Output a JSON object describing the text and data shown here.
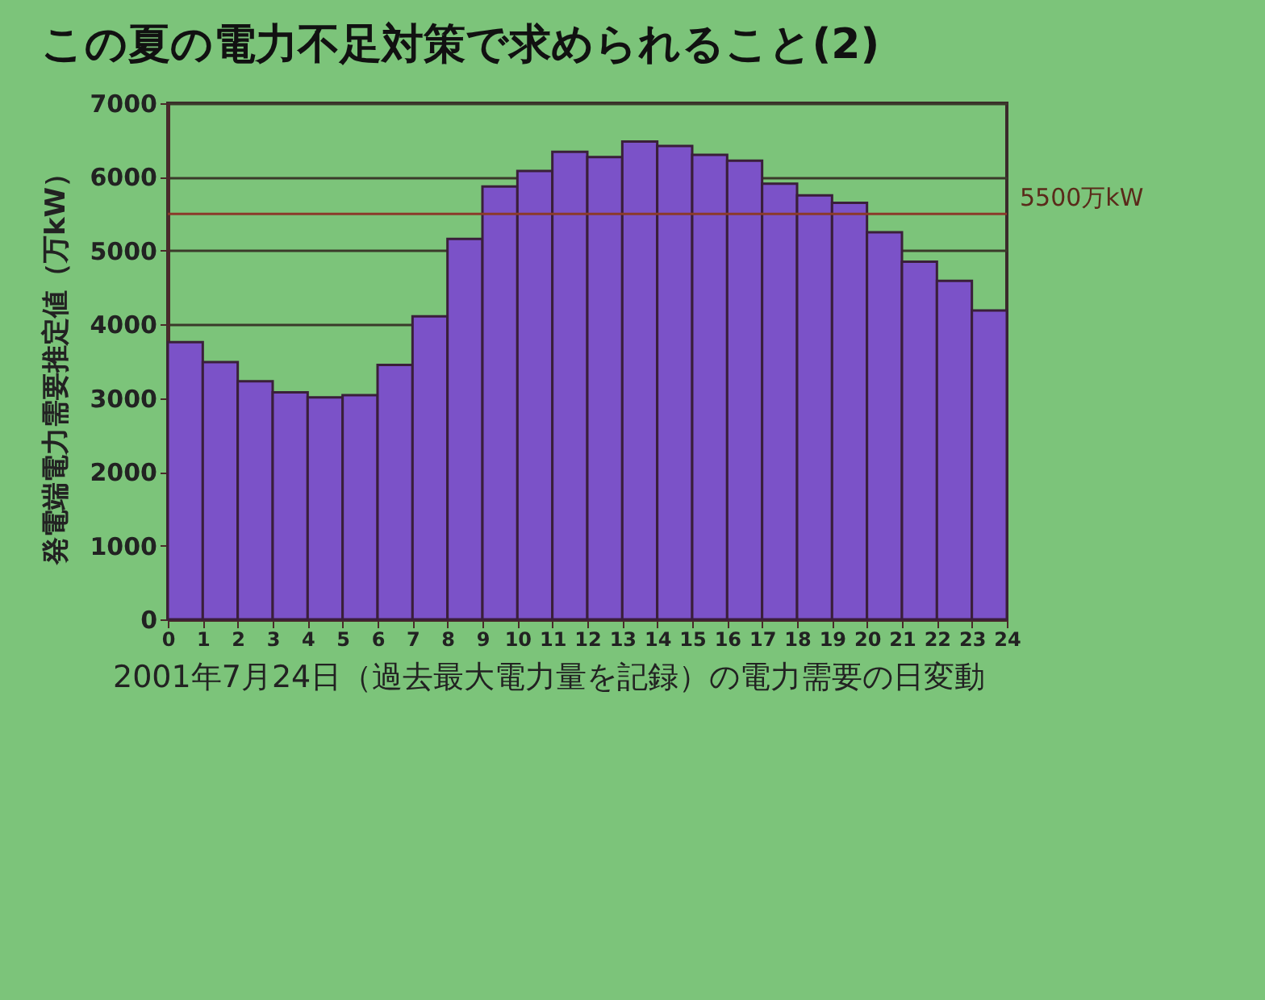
{
  "chart_data": {
    "type": "histogram",
    "title": "この夏の電力不足対策で求められること(2)",
    "ylabel": "発電端電力需要推定値（万kW）",
    "bins": [
      0,
      1,
      2,
      3,
      4,
      5,
      6,
      7,
      8,
      9,
      10,
      11,
      12,
      13,
      14,
      15,
      16,
      17,
      18,
      19,
      20,
      21,
      22,
      23,
      24
    ],
    "values": [
      3760,
      3490,
      3230,
      3080,
      3010,
      3040,
      3450,
      4110,
      5160,
      5870,
      6080,
      6340,
      6270,
      6480,
      6420,
      6300,
      6220,
      5910,
      5750,
      5650,
      5250,
      4850,
      4590,
      4190
    ],
    "color": "#7b52c8",
    "xlim": [
      0,
      24
    ],
    "xticks": [
      0,
      1,
      2,
      3,
      4,
      5,
      6,
      7,
      8,
      9,
      10,
      11,
      12,
      13,
      14,
      15,
      16,
      17,
      18,
      19,
      20,
      21,
      22,
      23,
      24
    ],
    "ylim": [
      0,
      7000
    ],
    "yticks": [
      0,
      1000,
      2000,
      3000,
      4000,
      5000,
      6000,
      7000
    ],
    "grid": "y",
    "ref_lines": [
      {
        "axis": "y",
        "value": 5500,
        "label": "5500万kW",
        "color": "#8b3a2a"
      }
    ],
    "annotations": [
      "2001年7月24日（過去最大電力量を記録）の電力需要の日変動"
    ]
  }
}
